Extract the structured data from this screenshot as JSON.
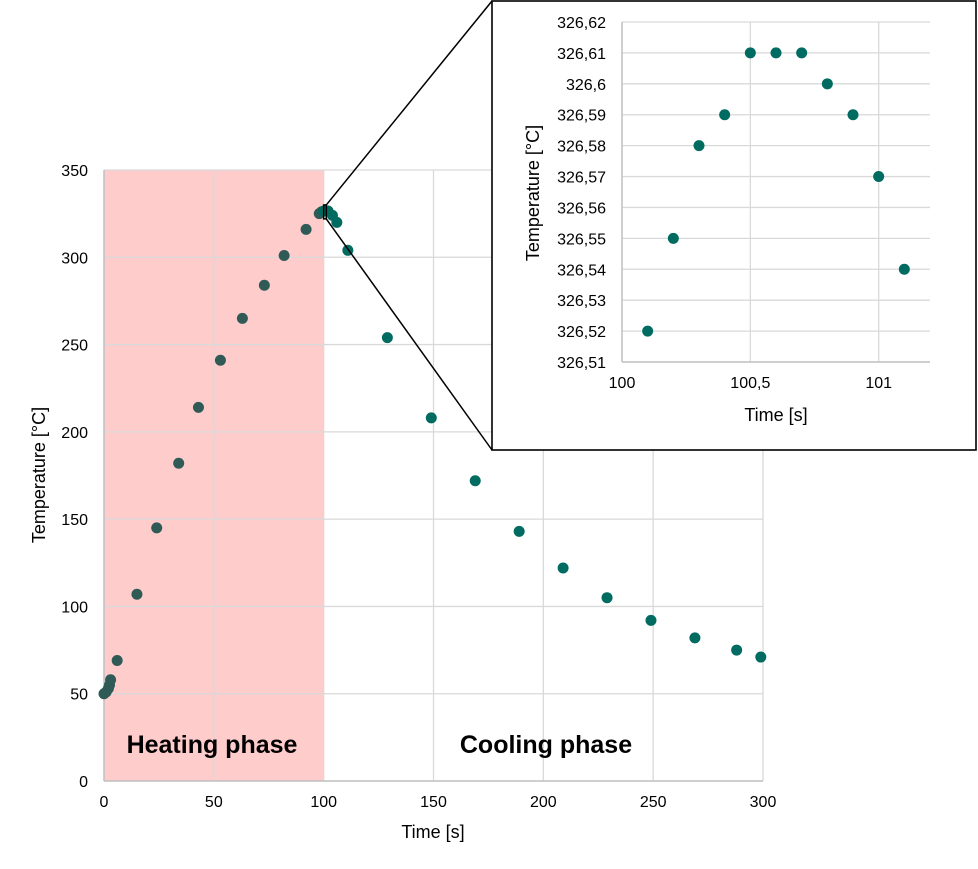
{
  "colors": {
    "point": "#006b61",
    "point_heating": "#2f5a55",
    "heating_band": "#ffcccc",
    "grid": "#d9d9d9",
    "axis": "#bfbfbf"
  },
  "chart_data": [
    {
      "type": "scatter",
      "xlabel": "Time [s]",
      "ylabel": "Temperature [°C]",
      "xlim": [
        0,
        300
      ],
      "ylim": [
        0,
        350
      ],
      "x_ticks": [
        0,
        50,
        100,
        150,
        200,
        250,
        300
      ],
      "y_ticks": [
        0,
        50,
        100,
        150,
        200,
        250,
        300,
        350
      ],
      "x_tick_labels": [
        "0",
        "50",
        "100",
        "150",
        "200",
        "250",
        "300"
      ],
      "y_tick_labels": [
        "0",
        "50",
        "100",
        "150",
        "200",
        "250",
        "300",
        "350"
      ],
      "grid": true,
      "shaded_region": {
        "x": [
          0,
          100
        ],
        "label": "Heating phase"
      },
      "annotations": [
        {
          "text": "Heating phase"
        },
        {
          "text": "Cooling phase"
        }
      ],
      "series": [
        {
          "points": [
            [
              0,
              50
            ],
            [
              1,
              51
            ],
            [
              2,
              53
            ],
            [
              2.5,
              55
            ],
            [
              3,
              58
            ],
            [
              6,
              69
            ],
            [
              15,
              107
            ],
            [
              24,
              145
            ],
            [
              34,
              182
            ],
            [
              43,
              214
            ],
            [
              53,
              241
            ],
            [
              63,
              265
            ],
            [
              73,
              284
            ],
            [
              82,
              301
            ],
            [
              92,
              316
            ],
            [
              98,
              325
            ],
            [
              99,
              326
            ],
            [
              100,
              326.5
            ],
            [
              101,
              326.6
            ],
            [
              102,
              326.5
            ],
            [
              104,
              324
            ],
            [
              106,
              320
            ],
            [
              111,
              304
            ],
            [
              129,
              254
            ],
            [
              149,
              208
            ],
            [
              169,
              172
            ],
            [
              189,
              143
            ],
            [
              209,
              122
            ],
            [
              229,
              105
            ],
            [
              249,
              92
            ],
            [
              269,
              82
            ],
            [
              288,
              75
            ],
            [
              299,
              71
            ]
          ]
        }
      ],
      "zoom_window": {
        "x": [
          100,
          101.2
        ],
        "y": [
          322,
          330
        ]
      }
    },
    {
      "type": "scatter",
      "role": "inset",
      "xlabel": "Time [s]",
      "ylabel": "Temperature [°C]",
      "xlim": [
        100,
        101.2
      ],
      "ylim": [
        326.51,
        326.62
      ],
      "x_ticks": [
        100,
        100.5,
        101
      ],
      "x_tick_labels": [
        "100",
        "100,5",
        "101"
      ],
      "y_ticks": [
        326.51,
        326.52,
        326.53,
        326.54,
        326.55,
        326.56,
        326.57,
        326.58,
        326.59,
        326.6,
        326.61,
        326.62
      ],
      "y_tick_labels": [
        "326,51",
        "326,52",
        "326,53",
        "326,54",
        "326,55",
        "326,56",
        "326,57",
        "326,58",
        "326,59",
        "326,6",
        "326,61",
        "326,62"
      ],
      "grid": true,
      "series": [
        {
          "points": [
            [
              100.1,
              326.52
            ],
            [
              100.2,
              326.55
            ],
            [
              100.3,
              326.58
            ],
            [
              100.4,
              326.59
            ],
            [
              100.5,
              326.61
            ],
            [
              100.6,
              326.61
            ],
            [
              100.7,
              326.61
            ],
            [
              100.8,
              326.6
            ],
            [
              100.9,
              326.59
            ],
            [
              101.0,
              326.57
            ],
            [
              101.1,
              326.54
            ]
          ]
        }
      ]
    }
  ]
}
